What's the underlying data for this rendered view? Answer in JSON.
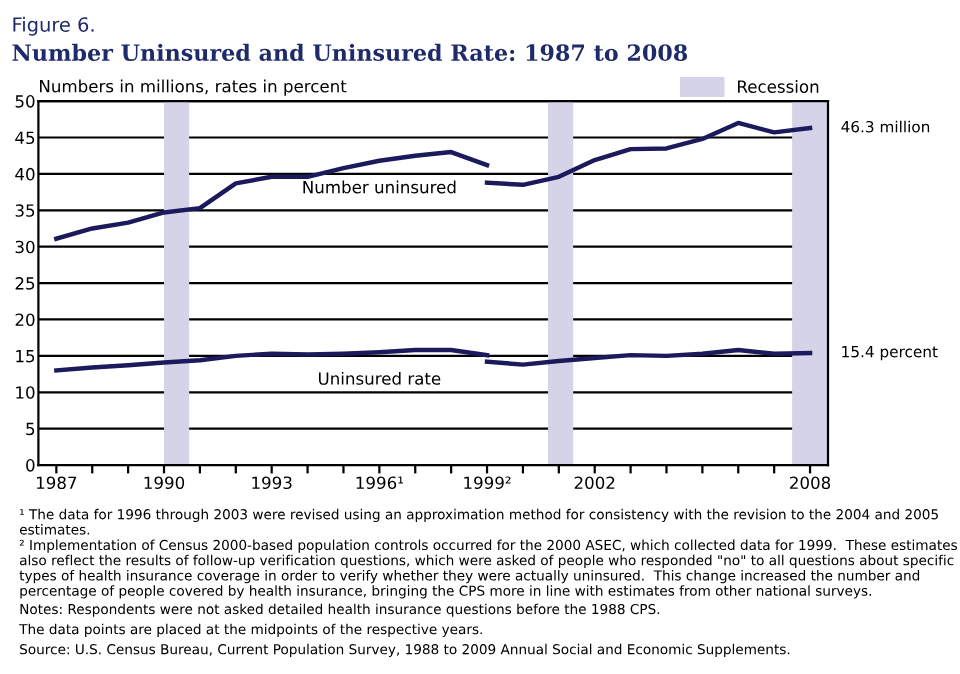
{
  "chart_data": {
    "type": "line",
    "subtitle": "Figure 6.",
    "title": "Number Uninsured and Uninsured Rate: 1987 to 2008",
    "ylabel": "Numbers in millions, rates in percent",
    "series": [
      {
        "name": "Number uninsured",
        "color": "#1c1a5c",
        "x": [
          1987,
          1988,
          1989,
          1990,
          1991,
          1992,
          1993,
          1994,
          1995,
          1996,
          1997,
          1998,
          1999
        ],
        "values": [
          31.1,
          32.5,
          33.3,
          34.7,
          35.3,
          38.7,
          39.6,
          39.6,
          40.8,
          41.8,
          42.5,
          43.0,
          41.2
        ]
      },
      {
        "color": "#1c1a5c",
        "x": [
          1999,
          2000,
          2001,
          2002,
          2003,
          2004,
          2005,
          2006,
          2007,
          2008
        ],
        "values": [
          38.8,
          38.5,
          39.6,
          41.9,
          43.4,
          43.5,
          44.8,
          47.0,
          45.7,
          46.3
        ]
      },
      {
        "name": "Uninsured rate",
        "color": "#1c1a5c",
        "x": [
          1987,
          1988,
          1989,
          1990,
          1991,
          1992,
          1993,
          1994,
          1995,
          1996,
          1997,
          1998,
          1999
        ],
        "values": [
          13.0,
          13.4,
          13.7,
          14.1,
          14.4,
          15.0,
          15.3,
          15.2,
          15.3,
          15.5,
          15.8,
          15.8,
          15.1
        ]
      },
      {
        "color": "#1c1a5c",
        "x": [
          1999,
          2000,
          2001,
          2002,
          2003,
          2004,
          2005,
          2006,
          2007,
          2008
        ],
        "values": [
          14.2,
          13.8,
          14.3,
          14.7,
          15.1,
          15.0,
          15.3,
          15.8,
          15.3,
          15.4
        ]
      }
    ],
    "xlim": [
      1986.5,
      2008.5
    ],
    "xticks": [
      1987,
      {
        "value": 1988,
        "label": null
      },
      {
        "value": 1989,
        "label": null
      },
      1990,
      {
        "value": 1991,
        "label": null
      },
      {
        "value": 1992,
        "label": null
      },
      1993,
      {
        "value": 1994,
        "label": null
      },
      {
        "value": 1995,
        "label": null
      },
      {
        "value": 1996,
        "label": "1996¹"
      },
      {
        "value": 1997,
        "label": null
      },
      {
        "value": 1998,
        "label": null
      },
      {
        "value": 1999,
        "label": "1999²"
      },
      {
        "value": 2000,
        "label": null
      },
      {
        "value": 2001,
        "label": null
      },
      2002,
      {
        "value": 2003,
        "label": null
      },
      {
        "value": 2004,
        "label": null
      },
      {
        "value": 2005,
        "label": null
      },
      {
        "value": 2006,
        "label": null
      },
      {
        "value": 2007,
        "label": null
      },
      2008
    ],
    "ylim": [
      0,
      50
    ],
    "yticks": [
      0,
      5,
      10,
      15,
      20,
      25,
      30,
      35,
      40,
      45,
      50
    ],
    "grid": "y",
    "bands": [
      {
        "axis": "x",
        "from": 1990.0,
        "to": 1990.7,
        "label": "Recession",
        "color": "#d5d3e8"
      },
      {
        "axis": "x",
        "from": 2000.7,
        "to": 2001.4,
        "color": "#d5d3e8"
      },
      {
        "axis": "x",
        "from": 2007.5,
        "to": 2008.5,
        "color": "#d5d3e8"
      }
    ],
    "legend": "top right",
    "annotations": [
      {
        "text": "46.3 million",
        "x": 2008,
        "y": 46.3
      },
      {
        "text": "15.4 percent",
        "x": 2008,
        "y": 15.4
      },
      "¹ The data for 1996 through 2003 were revised using an approximation method for consistency with the revision to the 2004 and 2005 estimates.",
      "² Implementation of Census 2000-based population controls occurred for the 2000 ASEC, which collected data for 1999.  These estimates also reflect the results of follow-up verification questions, which were asked of people who responded \"no\" to all questions about specific types of health insurance coverage in order to verify whether they were actually uninsured.  This change increased the number and percentage of people covered by health insurance, bringing the CPS more in line with estimates from other national surveys.",
      "Notes: Respondents were not asked detailed health insurance questions before the 1988 CPS.",
      "The data points are placed at the midpoints of the respective years.",
      "Source: U.S. Census Bureau, Current Population Survey, 1988 to 2009 Annual Social and Economic Supplements."
    ]
  }
}
